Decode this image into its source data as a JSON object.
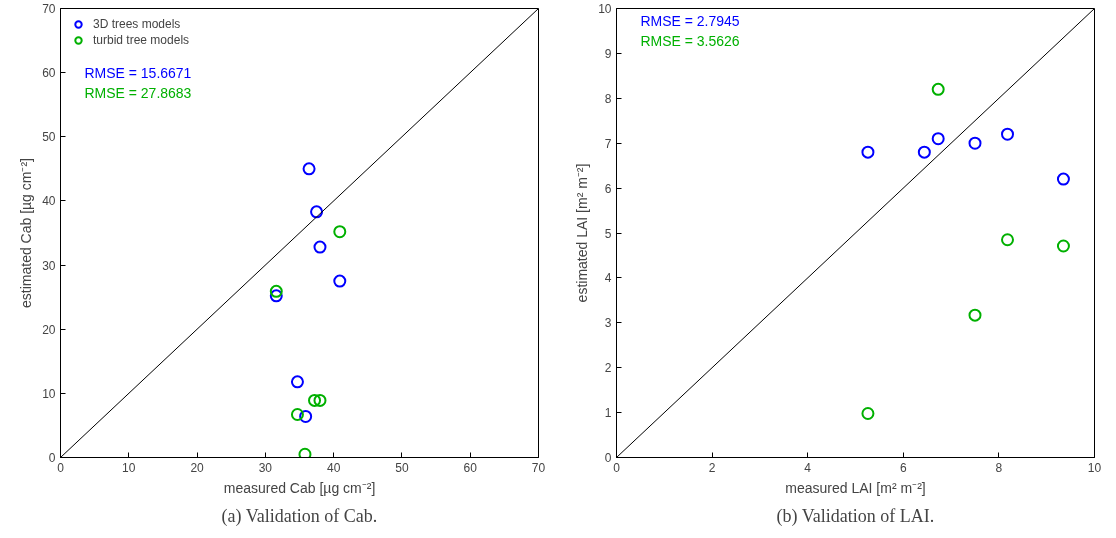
{
  "chart_data": [
    {
      "type": "scatter",
      "title": "(a) Validation of Cab.",
      "xlabel": "measured Cab [µg cm⁻²]",
      "ylabel": "estimated Cab [µg cm⁻²]",
      "xlim": [
        0,
        70
      ],
      "ylim": [
        0,
        70
      ],
      "xticks": [
        0,
        10,
        20,
        30,
        40,
        50,
        60,
        70
      ],
      "yticks": [
        0,
        10,
        20,
        30,
        40,
        50,
        60,
        70
      ],
      "grid": false,
      "legend": "top left",
      "marker": "circle",
      "annotations": [
        "RMSE = 15.6671",
        "RMSE = 27.8683"
      ],
      "series": [
        {
          "name": "3D trees models",
          "color": "#0000ff",
          "x": [
            36.4,
            37.5,
            38.0,
            40.9,
            31.6,
            34.7,
            35.9
          ],
          "values": [
            45.0,
            38.3,
            32.8,
            27.5,
            25.2,
            11.8,
            6.4
          ]
        },
        {
          "name": "turbid tree models",
          "color": "#00b000",
          "x": [
            40.9,
            31.6,
            37.2,
            38.0,
            34.7,
            35.8
          ],
          "values": [
            35.2,
            25.9,
            8.9,
            8.9,
            6.7,
            0.5
          ]
        },
        {
          "type": "line",
          "marker": "none",
          "color": "#000000",
          "x": [
            0,
            70
          ],
          "values": [
            0,
            70
          ]
        }
      ]
    },
    {
      "type": "scatter",
      "title": "(b) Validation of LAI.",
      "xlabel": "measured LAI [m² m⁻²]",
      "ylabel": "estimated LAI [m² m⁻²]",
      "xlim": [
        0,
        10
      ],
      "ylim": [
        0,
        10
      ],
      "xticks": [
        0,
        2,
        4,
        6,
        8,
        10
      ],
      "yticks": [
        0,
        1,
        2,
        3,
        4,
        5,
        6,
        7,
        8,
        9,
        10
      ],
      "grid": false,
      "marker": "circle",
      "annotations": [
        "RMSE = 2.7945",
        "RMSE = 3.5626"
      ],
      "series": [
        {
          "color": "#0000ff",
          "x": [
            5.26,
            6.44,
            6.73,
            7.5,
            8.18,
            9.35
          ],
          "values": [
            6.8,
            6.8,
            7.1,
            7.0,
            7.2,
            6.2
          ]
        },
        {
          "color": "#00b000",
          "x": [
            6.73,
            8.18,
            9.35,
            7.5,
            5.26
          ],
          "values": [
            8.2,
            4.85,
            4.71,
            3.17,
            0.98
          ]
        },
        {
          "type": "line",
          "marker": "none",
          "color": "#000000",
          "x": [
            0,
            10
          ],
          "values": [
            0,
            10
          ]
        }
      ]
    }
  ]
}
